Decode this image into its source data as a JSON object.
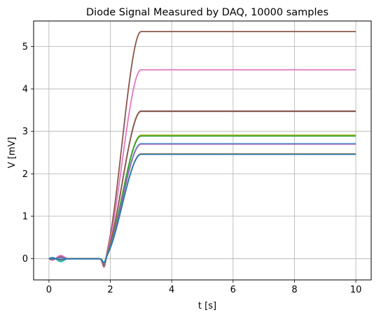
{
  "chart_data": {
    "type": "line",
    "title": "Diode Signal Measured by DAQ,  10000 samples",
    "xlabel": "t  [s]",
    "ylabel": "V  [mV]",
    "xlim": [
      -0.5,
      10.5
    ],
    "ylim": [
      -0.5,
      5.6
    ],
    "xticks": [
      0,
      2,
      4,
      6,
      8,
      10
    ],
    "yticks": [
      0,
      1,
      2,
      3,
      4,
      5
    ],
    "grid": true,
    "curve_model": {
      "rise_start_s": 1.75,
      "rise_end_s": 3.0,
      "pre_oscillation_window_s": [
        0,
        0.6
      ],
      "dip_near_s": 1.8
    },
    "series": [
      {
        "color": "#8c564b",
        "plateau": 5.35,
        "dip": -0.22,
        "wiggle": -0.06
      },
      {
        "color": "#e377c2",
        "plateau": 4.45,
        "dip": -0.2,
        "wiggle": -0.09
      },
      {
        "color": "#7f7f7f",
        "plateau": 3.48,
        "dip": -0.18,
        "wiggle": -0.05
      },
      {
        "color": "#8c564b",
        "plateau": 3.47,
        "dip": -0.17,
        "wiggle": -0.04
      },
      {
        "color": "#bcbd22",
        "plateau": 2.91,
        "dip": -0.12,
        "wiggle": 0.05
      },
      {
        "color": "#2ca02c",
        "plateau": 2.89,
        "dip": -0.1,
        "wiggle": 0.07
      },
      {
        "color": "#17becf",
        "plateau": 2.71,
        "dip": -0.1,
        "wiggle": 0.08
      },
      {
        "color": "#9467bd",
        "plateau": 2.7,
        "dip": -0.14,
        "wiggle": -0.03
      },
      {
        "color": "#ff7f0e",
        "plateau": 2.47,
        "dip": -0.12,
        "wiggle": 0.03
      },
      {
        "color": "#1f77b4",
        "plateau": 2.46,
        "dip": -0.11,
        "wiggle": 0.02
      }
    ]
  }
}
